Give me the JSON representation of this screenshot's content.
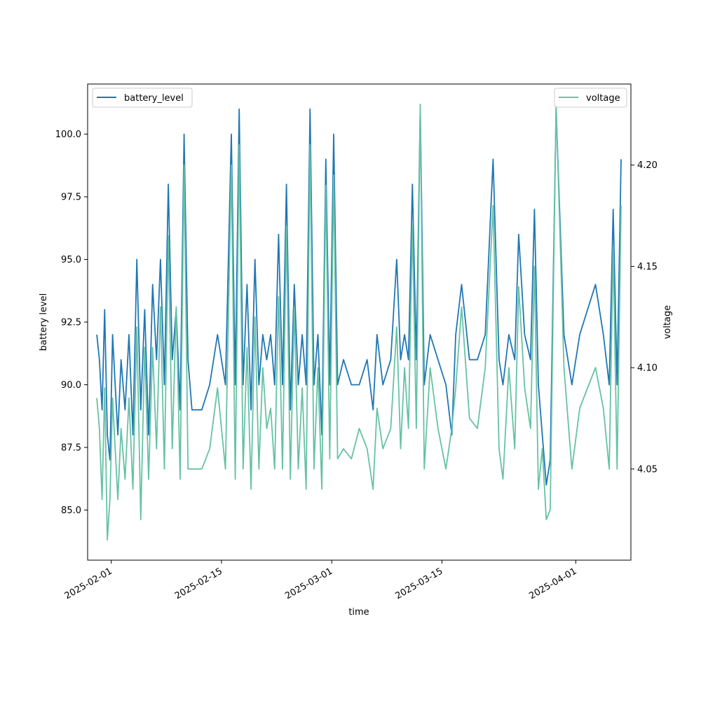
{
  "chart_data": {
    "type": "line",
    "title": "",
    "xlabel": "time",
    "ylabel": "battery level",
    "y2label": "voltage",
    "x_axis": {
      "type": "date",
      "range": [
        "2025-01-29",
        "2025-04-08"
      ],
      "ticks": [
        "2025-02-01",
        "2025-02-15",
        "2025-03-01",
        "2025-03-15",
        "2025-04-01"
      ]
    },
    "y_axis": {
      "range": [
        83.0,
        102.0
      ],
      "ticks": [
        "85.0",
        "87.5",
        "90.0",
        "92.5",
        "95.0",
        "97.5",
        "100.0"
      ]
    },
    "y2_axis": {
      "range": [
        4.005,
        4.24
      ],
      "ticks": [
        "4.05",
        "4.10",
        "4.15",
        "4.20"
      ]
    },
    "grid": false,
    "legends": [
      {
        "placement": "upper-left",
        "entries": [
          "battery_level"
        ]
      },
      {
        "placement": "upper-right",
        "entries": [
          "voltage"
        ]
      }
    ],
    "colors": {
      "battery_level": "#1f77b4",
      "voltage": "#66c2a5"
    },
    "series": [
      {
        "name": "battery_level",
        "axis": "left",
        "x": [
          "2025-01-30",
          "2025-01-30",
          "2025-01-30",
          "2025-01-31",
          "2025-01-31",
          "2025-01-31",
          "2025-02-01",
          "2025-02-01",
          "2025-02-01",
          "2025-02-02",
          "2025-02-02",
          "2025-02-03",
          "2025-02-03",
          "2025-02-04",
          "2025-02-04",
          "2025-02-05",
          "2025-02-05",
          "2025-02-06",
          "2025-02-06",
          "2025-02-07",
          "2025-02-07",
          "2025-02-08",
          "2025-02-08",
          "2025-02-09",
          "2025-02-09",
          "2025-02-10",
          "2025-02-10",
          "2025-02-11",
          "2025-02-11",
          "2025-02-12",
          "2025-02-13",
          "2025-02-14",
          "2025-02-15",
          "2025-02-16",
          "2025-02-16",
          "2025-02-17",
          "2025-02-17",
          "2025-02-18",
          "2025-02-18",
          "2025-02-19",
          "2025-02-19",
          "2025-02-20",
          "2025-02-20",
          "2025-02-21",
          "2025-02-21",
          "2025-02-22",
          "2025-02-22",
          "2025-02-23",
          "2025-02-23",
          "2025-02-24",
          "2025-02-24",
          "2025-02-25",
          "2025-02-25",
          "2025-02-26",
          "2025-02-26",
          "2025-02-27",
          "2025-02-27",
          "2025-02-28",
          "2025-02-28",
          "2025-03-01",
          "2025-03-01",
          "2025-03-02",
          "2025-03-03",
          "2025-03-04",
          "2025-03-05",
          "2025-03-06",
          "2025-03-06",
          "2025-03-07",
          "2025-03-08",
          "2025-03-09",
          "2025-03-09",
          "2025-03-10",
          "2025-03-10",
          "2025-03-11",
          "2025-03-11",
          "2025-03-12",
          "2025-03-12",
          "2025-03-13",
          "2025-03-14",
          "2025-03-15",
          "2025-03-16",
          "2025-03-16",
          "2025-03-17",
          "2025-03-18",
          "2025-03-19",
          "2025-03-20",
          "2025-03-21",
          "2025-03-22",
          "2025-03-22",
          "2025-03-23",
          "2025-03-24",
          "2025-03-24",
          "2025-03-25",
          "2025-03-26",
          "2025-03-26",
          "2025-03-27",
          "2025-03-27",
          "2025-03-28",
          "2025-03-28",
          "2025-03-29",
          "2025-03-30",
          "2025-03-31",
          "2025-04-01",
          "2025-04-02",
          "2025-04-03",
          "2025-04-04",
          "2025-04-05",
          "2025-04-05",
          "2025-04-06",
          "2025-04-06"
        ],
        "values": [
          92,
          91,
          89,
          93,
          88,
          87,
          92,
          90,
          88,
          91,
          89,
          92,
          88,
          95,
          89,
          93,
          88,
          94,
          91,
          95,
          90,
          98,
          91,
          93,
          89,
          100,
          91,
          89,
          89,
          89,
          90,
          92,
          90,
          100,
          90,
          101,
          90,
          94,
          89,
          95,
          90,
          92,
          91,
          92,
          90,
          96,
          90,
          98,
          89,
          94,
          90,
          92,
          90,
          101,
          90,
          92,
          88,
          99,
          90,
          100,
          90,
          91,
          90,
          90,
          91,
          89,
          92,
          90,
          91,
          95,
          91,
          92,
          91,
          98,
          91,
          101,
          90,
          92,
          91,
          90,
          88,
          92,
          94,
          91,
          91,
          92,
          99,
          91,
          90,
          92,
          91,
          96,
          92,
          91,
          97,
          90,
          88,
          86,
          87,
          101,
          92,
          90,
          92,
          93,
          94,
          92,
          90,
          97,
          90,
          99
        ]
      },
      {
        "name": "voltage",
        "axis": "right",
        "x": [
          "2025-01-30",
          "2025-01-30",
          "2025-01-30",
          "2025-01-31",
          "2025-01-31",
          "2025-01-31",
          "2025-02-01",
          "2025-02-01",
          "2025-02-01",
          "2025-02-02",
          "2025-02-02",
          "2025-02-03",
          "2025-02-03",
          "2025-02-04",
          "2025-02-04",
          "2025-02-05",
          "2025-02-05",
          "2025-02-06",
          "2025-02-06",
          "2025-02-07",
          "2025-02-07",
          "2025-02-08",
          "2025-02-08",
          "2025-02-09",
          "2025-02-09",
          "2025-02-10",
          "2025-02-10",
          "2025-02-11",
          "2025-02-11",
          "2025-02-12",
          "2025-02-13",
          "2025-02-14",
          "2025-02-15",
          "2025-02-16",
          "2025-02-16",
          "2025-02-17",
          "2025-02-17",
          "2025-02-18",
          "2025-02-18",
          "2025-02-19",
          "2025-02-19",
          "2025-02-20",
          "2025-02-20",
          "2025-02-21",
          "2025-02-21",
          "2025-02-22",
          "2025-02-22",
          "2025-02-23",
          "2025-02-23",
          "2025-02-24",
          "2025-02-24",
          "2025-02-25",
          "2025-02-25",
          "2025-02-26",
          "2025-02-26",
          "2025-02-27",
          "2025-02-27",
          "2025-02-28",
          "2025-02-28",
          "2025-03-01",
          "2025-03-01",
          "2025-03-02",
          "2025-03-03",
          "2025-03-04",
          "2025-03-05",
          "2025-03-06",
          "2025-03-06",
          "2025-03-07",
          "2025-03-08",
          "2025-03-09",
          "2025-03-09",
          "2025-03-10",
          "2025-03-10",
          "2025-03-11",
          "2025-03-11",
          "2025-03-12",
          "2025-03-12",
          "2025-03-13",
          "2025-03-14",
          "2025-03-15",
          "2025-03-16",
          "2025-03-16",
          "2025-03-17",
          "2025-03-18",
          "2025-03-19",
          "2025-03-20",
          "2025-03-21",
          "2025-03-22",
          "2025-03-22",
          "2025-03-23",
          "2025-03-24",
          "2025-03-24",
          "2025-03-25",
          "2025-03-26",
          "2025-03-26",
          "2025-03-27",
          "2025-03-27",
          "2025-03-28",
          "2025-03-28",
          "2025-03-29",
          "2025-03-30",
          "2025-03-31",
          "2025-04-01",
          "2025-04-02",
          "2025-04-03",
          "2025-04-04",
          "2025-04-05",
          "2025-04-05",
          "2025-04-06",
          "2025-04-06"
        ],
        "values": [
          4.085,
          4.07,
          4.035,
          4.09,
          4.015,
          4.035,
          4.085,
          4.06,
          4.035,
          4.07,
          4.045,
          4.085,
          4.04,
          4.12,
          4.025,
          4.11,
          4.045,
          4.11,
          4.06,
          4.13,
          4.05,
          4.165,
          4.06,
          4.13,
          4.045,
          4.2,
          4.05,
          4.05,
          4.05,
          4.05,
          4.06,
          4.09,
          4.05,
          4.2,
          4.045,
          4.21,
          4.05,
          4.11,
          4.04,
          4.125,
          4.05,
          4.1,
          4.07,
          4.08,
          4.05,
          4.135,
          4.05,
          4.17,
          4.045,
          4.13,
          4.05,
          4.09,
          4.04,
          4.21,
          4.05,
          4.1,
          4.04,
          4.19,
          4.055,
          4.195,
          4.055,
          4.06,
          4.055,
          4.07,
          4.06,
          4.04,
          4.08,
          4.06,
          4.07,
          4.12,
          4.06,
          4.1,
          4.07,
          4.17,
          4.07,
          4.23,
          4.05,
          4.1,
          4.07,
          4.05,
          4.07,
          4.09,
          4.13,
          4.075,
          4.07,
          4.1,
          4.18,
          4.06,
          4.045,
          4.1,
          4.06,
          4.14,
          4.09,
          4.07,
          4.15,
          4.04,
          4.06,
          4.025,
          4.03,
          4.23,
          4.1,
          4.05,
          4.08,
          4.09,
          4.1,
          4.08,
          4.05,
          4.16,
          4.05,
          4.18
        ]
      }
    ]
  }
}
